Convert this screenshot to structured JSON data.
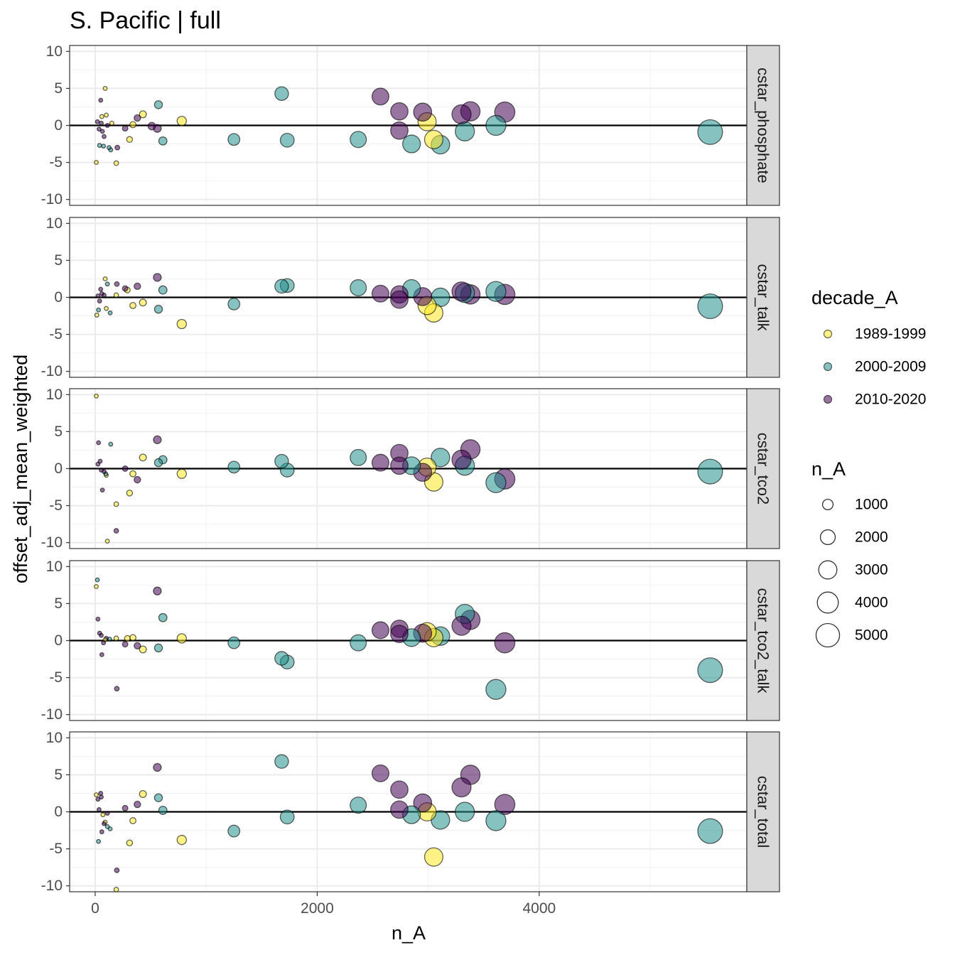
{
  "chart_data": {
    "type": "scatter",
    "title": "S. Pacific | full",
    "xlabel": "n_A",
    "ylabel": "offset_adj_mean_weighted",
    "xlim": [
      -230,
      5870
    ],
    "ylim": [
      -10.8,
      10.8
    ],
    "x_ticks": [
      0,
      2000,
      4000
    ],
    "x_tick_labels": [
      "0",
      "2000",
      "4000"
    ],
    "y_ticks": [
      10,
      5,
      0,
      -5,
      -10
    ],
    "y_tick_labels": [
      "10",
      "5",
      "0",
      "-5",
      "-10"
    ],
    "grid": true,
    "reference_line_y": 0,
    "panels": [
      {
        "name": "cstar_phosphate",
        "points": [
          {
            "x": 10,
            "y": -5.0,
            "d": 0
          },
          {
            "x": 90,
            "y": 5.0,
            "d": 0
          },
          {
            "x": 60,
            "y": 1.2,
            "d": 0
          },
          {
            "x": 100,
            "y": 1.4,
            "d": 0
          },
          {
            "x": 150,
            "y": 0.3,
            "d": 0
          },
          {
            "x": 190,
            "y": -5.1,
            "d": 0
          },
          {
            "x": 310,
            "y": -1.9,
            "d": 0
          },
          {
            "x": 340,
            "y": 0.1,
            "d": 0
          },
          {
            "x": 430,
            "y": 1.5,
            "d": 0
          },
          {
            "x": 780,
            "y": 0.6,
            "d": 0
          },
          {
            "x": 2990,
            "y": 0.5,
            "d": 0
          },
          {
            "x": 3050,
            "y": -1.9,
            "d": 0
          },
          {
            "x": 40,
            "y": -2.7,
            "d": 1
          },
          {
            "x": 75,
            "y": -2.8,
            "d": 1
          },
          {
            "x": 125,
            "y": -3.0,
            "d": 1
          },
          {
            "x": 140,
            "y": -3.3,
            "d": 1
          },
          {
            "x": 570,
            "y": 2.8,
            "d": 1
          },
          {
            "x": 610,
            "y": -2.1,
            "d": 1
          },
          {
            "x": 1250,
            "y": -1.9,
            "d": 1
          },
          {
            "x": 1680,
            "y": 4.3,
            "d": 1
          },
          {
            "x": 1730,
            "y": -2.0,
            "d": 1
          },
          {
            "x": 2370,
            "y": -1.9,
            "d": 1
          },
          {
            "x": 2850,
            "y": -2.5,
            "d": 1
          },
          {
            "x": 3110,
            "y": -2.6,
            "d": 1
          },
          {
            "x": 3330,
            "y": -0.8,
            "d": 1
          },
          {
            "x": 3610,
            "y": 0.0,
            "d": 1
          },
          {
            "x": 5540,
            "y": -0.9,
            "d": 1
          },
          {
            "x": 20,
            "y": 0.5,
            "d": 2
          },
          {
            "x": 35,
            "y": -0.5,
            "d": 2
          },
          {
            "x": 50,
            "y": 3.4,
            "d": 2
          },
          {
            "x": 55,
            "y": 0.3,
            "d": 2
          },
          {
            "x": 65,
            "y": -0.8,
            "d": 2
          },
          {
            "x": 80,
            "y": -1.5,
            "d": 2
          },
          {
            "x": 110,
            "y": 0.0,
            "d": 2
          },
          {
            "x": 200,
            "y": -3.0,
            "d": 2
          },
          {
            "x": 270,
            "y": -0.4,
            "d": 2
          },
          {
            "x": 380,
            "y": 1.0,
            "d": 2
          },
          {
            "x": 510,
            "y": -0.1,
            "d": 2
          },
          {
            "x": 560,
            "y": -0.4,
            "d": 2
          },
          {
            "x": 2570,
            "y": 3.9,
            "d": 2
          },
          {
            "x": 2740,
            "y": 1.9,
            "d": 2
          },
          {
            "x": 2740,
            "y": -0.7,
            "d": 2
          },
          {
            "x": 2950,
            "y": 1.8,
            "d": 2
          },
          {
            "x": 3300,
            "y": 1.5,
            "d": 2
          },
          {
            "x": 3380,
            "y": 1.9,
            "d": 2
          },
          {
            "x": 3690,
            "y": 1.8,
            "d": 2
          }
        ]
      },
      {
        "name": "cstar_talk",
        "points": [
          {
            "x": 15,
            "y": -2.4,
            "d": 0
          },
          {
            "x": 90,
            "y": 2.5,
            "d": 0
          },
          {
            "x": 100,
            "y": -1.5,
            "d": 0
          },
          {
            "x": 190,
            "y": 0.3,
            "d": 0
          },
          {
            "x": 290,
            "y": 1.0,
            "d": 0
          },
          {
            "x": 340,
            "y": -1.1,
            "d": 0
          },
          {
            "x": 430,
            "y": -0.7,
            "d": 0
          },
          {
            "x": 780,
            "y": -3.6,
            "d": 0
          },
          {
            "x": 2990,
            "y": -1.1,
            "d": 0
          },
          {
            "x": 3050,
            "y": -2.1,
            "d": 0
          },
          {
            "x": 30,
            "y": -1.7,
            "d": 1
          },
          {
            "x": 110,
            "y": 1.8,
            "d": 1
          },
          {
            "x": 135,
            "y": -2.1,
            "d": 1
          },
          {
            "x": 570,
            "y": -1.6,
            "d": 1
          },
          {
            "x": 610,
            "y": 1.0,
            "d": 1
          },
          {
            "x": 1250,
            "y": -0.9,
            "d": 1
          },
          {
            "x": 1680,
            "y": 1.5,
            "d": 1
          },
          {
            "x": 1730,
            "y": 1.6,
            "d": 1
          },
          {
            "x": 2370,
            "y": 1.3,
            "d": 1
          },
          {
            "x": 2850,
            "y": 1.2,
            "d": 1
          },
          {
            "x": 3110,
            "y": 0.0,
            "d": 1
          },
          {
            "x": 3330,
            "y": 0.6,
            "d": 1
          },
          {
            "x": 3610,
            "y": 0.8,
            "d": 1
          },
          {
            "x": 5540,
            "y": -1.2,
            "d": 1
          },
          {
            "x": 25,
            "y": 0.2,
            "d": 2
          },
          {
            "x": 40,
            "y": -0.5,
            "d": 2
          },
          {
            "x": 50,
            "y": 1.1,
            "d": 2
          },
          {
            "x": 60,
            "y": 0.5,
            "d": 2
          },
          {
            "x": 80,
            "y": 0.3,
            "d": 2
          },
          {
            "x": 195,
            "y": 1.8,
            "d": 2
          },
          {
            "x": 270,
            "y": 1.2,
            "d": 2
          },
          {
            "x": 380,
            "y": 1.5,
            "d": 2
          },
          {
            "x": 560,
            "y": 2.7,
            "d": 2
          },
          {
            "x": 2570,
            "y": 0.5,
            "d": 2
          },
          {
            "x": 2740,
            "y": 0.4,
            "d": 2
          },
          {
            "x": 2740,
            "y": -0.3,
            "d": 2
          },
          {
            "x": 2950,
            "y": 0.1,
            "d": 2
          },
          {
            "x": 3300,
            "y": 0.8,
            "d": 2
          },
          {
            "x": 3380,
            "y": 0.4,
            "d": 2
          },
          {
            "x": 3690,
            "y": 0.4,
            "d": 2
          }
        ]
      },
      {
        "name": "cstar_tco2",
        "points": [
          {
            "x": 10,
            "y": 9.8,
            "d": 0
          },
          {
            "x": 100,
            "y": -0.9,
            "d": 0
          },
          {
            "x": 110,
            "y": -9.8,
            "d": 0
          },
          {
            "x": 190,
            "y": -4.8,
            "d": 0
          },
          {
            "x": 310,
            "y": -3.3,
            "d": 0
          },
          {
            "x": 340,
            "y": -0.7,
            "d": 0
          },
          {
            "x": 430,
            "y": 1.5,
            "d": 0
          },
          {
            "x": 780,
            "y": -0.7,
            "d": 0
          },
          {
            "x": 2990,
            "y": 0.2,
            "d": 0
          },
          {
            "x": 3050,
            "y": -1.8,
            "d": 0
          },
          {
            "x": 95,
            "y": -0.7,
            "d": 1
          },
          {
            "x": 140,
            "y": 3.3,
            "d": 1
          },
          {
            "x": 570,
            "y": 0.8,
            "d": 1
          },
          {
            "x": 610,
            "y": 1.2,
            "d": 1
          },
          {
            "x": 1250,
            "y": 0.2,
            "d": 1
          },
          {
            "x": 1680,
            "y": 1.0,
            "d": 1
          },
          {
            "x": 1730,
            "y": -0.2,
            "d": 1
          },
          {
            "x": 2370,
            "y": 1.5,
            "d": 1
          },
          {
            "x": 2850,
            "y": 0.4,
            "d": 1
          },
          {
            "x": 3110,
            "y": 1.5,
            "d": 1
          },
          {
            "x": 3330,
            "y": 0.4,
            "d": 1
          },
          {
            "x": 3610,
            "y": -1.9,
            "d": 1
          },
          {
            "x": 5540,
            "y": -0.4,
            "d": 1
          },
          {
            "x": 25,
            "y": 0.6,
            "d": 2
          },
          {
            "x": 30,
            "y": 3.5,
            "d": 2
          },
          {
            "x": 45,
            "y": 1.0,
            "d": 2
          },
          {
            "x": 55,
            "y": -0.2,
            "d": 2
          },
          {
            "x": 65,
            "y": -2.9,
            "d": 2
          },
          {
            "x": 80,
            "y": -0.4,
            "d": 2
          },
          {
            "x": 190,
            "y": -8.4,
            "d": 2
          },
          {
            "x": 270,
            "y": 0.0,
            "d": 2
          },
          {
            "x": 380,
            "y": -1.5,
            "d": 2
          },
          {
            "x": 560,
            "y": 3.9,
            "d": 2
          },
          {
            "x": 2570,
            "y": 0.8,
            "d": 2
          },
          {
            "x": 2740,
            "y": 2.1,
            "d": 2
          },
          {
            "x": 2740,
            "y": 0.4,
            "d": 2
          },
          {
            "x": 2950,
            "y": -0.5,
            "d": 2
          },
          {
            "x": 3300,
            "y": 1.2,
            "d": 2
          },
          {
            "x": 3380,
            "y": 2.6,
            "d": 2
          },
          {
            "x": 3690,
            "y": -1.4,
            "d": 2
          }
        ]
      },
      {
        "name": "cstar_tco2_talk",
        "points": [
          {
            "x": 10,
            "y": 7.3,
            "d": 0
          },
          {
            "x": 90,
            "y": 0.1,
            "d": 0
          },
          {
            "x": 190,
            "y": 0.3,
            "d": 0
          },
          {
            "x": 290,
            "y": 0.3,
            "d": 0
          },
          {
            "x": 340,
            "y": 0.4,
            "d": 0
          },
          {
            "x": 430,
            "y": -1.2,
            "d": 0
          },
          {
            "x": 780,
            "y": 0.3,
            "d": 0
          },
          {
            "x": 2990,
            "y": 1.2,
            "d": 0
          },
          {
            "x": 3050,
            "y": 0.4,
            "d": 0
          },
          {
            "x": 20,
            "y": 8.2,
            "d": 1
          },
          {
            "x": 130,
            "y": 0.2,
            "d": 1
          },
          {
            "x": 570,
            "y": -1.0,
            "d": 1
          },
          {
            "x": 610,
            "y": 3.1,
            "d": 1
          },
          {
            "x": 1250,
            "y": -0.3,
            "d": 1
          },
          {
            "x": 1680,
            "y": -2.4,
            "d": 1
          },
          {
            "x": 1730,
            "y": -2.9,
            "d": 1
          },
          {
            "x": 2370,
            "y": -0.3,
            "d": 1
          },
          {
            "x": 2850,
            "y": 0.4,
            "d": 1
          },
          {
            "x": 3110,
            "y": 0.6,
            "d": 1
          },
          {
            "x": 3330,
            "y": 3.6,
            "d": 1
          },
          {
            "x": 3610,
            "y": -6.6,
            "d": 1
          },
          {
            "x": 5540,
            "y": -4.0,
            "d": 1
          },
          {
            "x": 25,
            "y": 2.9,
            "d": 2
          },
          {
            "x": 40,
            "y": 1.0,
            "d": 2
          },
          {
            "x": 55,
            "y": 0.7,
            "d": 2
          },
          {
            "x": 60,
            "y": -1.9,
            "d": 2
          },
          {
            "x": 75,
            "y": -0.3,
            "d": 2
          },
          {
            "x": 100,
            "y": 0.3,
            "d": 2
          },
          {
            "x": 195,
            "y": -6.5,
            "d": 2
          },
          {
            "x": 270,
            "y": -0.5,
            "d": 2
          },
          {
            "x": 380,
            "y": -0.7,
            "d": 2
          },
          {
            "x": 560,
            "y": 6.7,
            "d": 2
          },
          {
            "x": 2570,
            "y": 1.4,
            "d": 2
          },
          {
            "x": 2740,
            "y": 1.6,
            "d": 2
          },
          {
            "x": 2740,
            "y": 0.9,
            "d": 2
          },
          {
            "x": 2950,
            "y": 1.0,
            "d": 2
          },
          {
            "x": 3300,
            "y": 2.0,
            "d": 2
          },
          {
            "x": 3380,
            "y": 2.8,
            "d": 2
          },
          {
            "x": 3690,
            "y": -0.3,
            "d": 2
          }
        ]
      },
      {
        "name": "cstar_total",
        "points": [
          {
            "x": 10,
            "y": 2.3,
            "d": 0
          },
          {
            "x": 70,
            "y": -0.4,
            "d": 0
          },
          {
            "x": 90,
            "y": -1.4,
            "d": 0
          },
          {
            "x": 190,
            "y": -10.5,
            "d": 0
          },
          {
            "x": 310,
            "y": -4.2,
            "d": 0
          },
          {
            "x": 340,
            "y": -1.2,
            "d": 0
          },
          {
            "x": 430,
            "y": 2.4,
            "d": 0
          },
          {
            "x": 780,
            "y": -3.8,
            "d": 0
          },
          {
            "x": 2990,
            "y": 0.0,
            "d": 0
          },
          {
            "x": 3050,
            "y": -6.1,
            "d": 0
          },
          {
            "x": 30,
            "y": -4.0,
            "d": 1
          },
          {
            "x": 110,
            "y": -2.0,
            "d": 1
          },
          {
            "x": 135,
            "y": -2.3,
            "d": 1
          },
          {
            "x": 570,
            "y": 1.9,
            "d": 1
          },
          {
            "x": 610,
            "y": 0.2,
            "d": 1
          },
          {
            "x": 1250,
            "y": -2.6,
            "d": 1
          },
          {
            "x": 1680,
            "y": 6.8,
            "d": 1
          },
          {
            "x": 1730,
            "y": -0.7,
            "d": 1
          },
          {
            "x": 2370,
            "y": 0.9,
            "d": 1
          },
          {
            "x": 2850,
            "y": -0.4,
            "d": 1
          },
          {
            "x": 3110,
            "y": -1.1,
            "d": 1
          },
          {
            "x": 3330,
            "y": 0.0,
            "d": 1
          },
          {
            "x": 3610,
            "y": -1.2,
            "d": 1
          },
          {
            "x": 5540,
            "y": -2.6,
            "d": 1
          },
          {
            "x": 25,
            "y": 1.7,
            "d": 2
          },
          {
            "x": 35,
            "y": 0.3,
            "d": 2
          },
          {
            "x": 50,
            "y": 2.5,
            "d": 2
          },
          {
            "x": 55,
            "y": 2.0,
            "d": 2
          },
          {
            "x": 60,
            "y": -2.7,
            "d": 2
          },
          {
            "x": 80,
            "y": -1.6,
            "d": 2
          },
          {
            "x": 110,
            "y": -0.2,
            "d": 2
          },
          {
            "x": 195,
            "y": -7.9,
            "d": 2
          },
          {
            "x": 270,
            "y": 0.5,
            "d": 2
          },
          {
            "x": 380,
            "y": 1.0,
            "d": 2
          },
          {
            "x": 560,
            "y": 6.0,
            "d": 2
          },
          {
            "x": 2570,
            "y": 5.2,
            "d": 2
          },
          {
            "x": 2740,
            "y": 3.0,
            "d": 2
          },
          {
            "x": 2740,
            "y": 0.3,
            "d": 2
          },
          {
            "x": 2950,
            "y": 1.2,
            "d": 2
          },
          {
            "x": 3300,
            "y": 3.3,
            "d": 2
          },
          {
            "x": 3380,
            "y": 5.0,
            "d": 2
          },
          {
            "x": 3690,
            "y": 1.0,
            "d": 2
          }
        ]
      }
    ],
    "legend_color": {
      "title": "decade_A",
      "items": [
        {
          "label": "1989-1999",
          "color": "#FDE725"
        },
        {
          "label": "2000-2009",
          "color": "#21908C"
        },
        {
          "label": "2010-2020",
          "color": "#440154"
        }
      ]
    },
    "legend_size": {
      "title": "n_A",
      "values": [
        1000,
        2000,
        3000,
        4000,
        5000
      ],
      "labels": [
        "1000",
        "2000",
        "3000",
        "4000",
        "5000"
      ]
    }
  }
}
